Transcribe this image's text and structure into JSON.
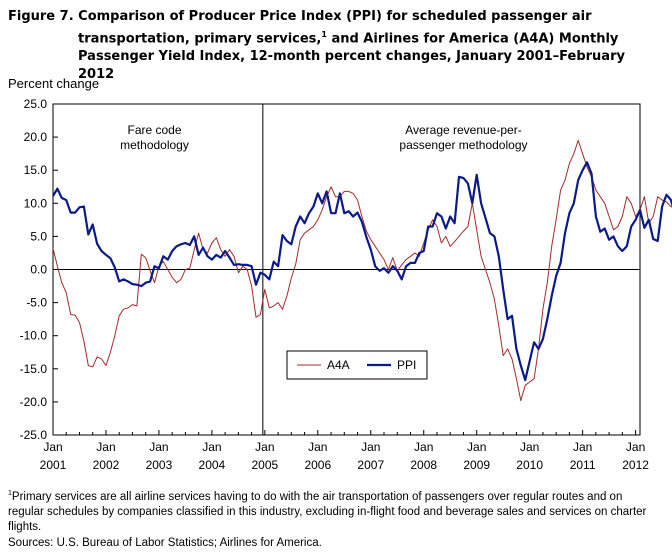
{
  "title": {
    "line1": "Figure 7.  Comparison of Producer Price Index (PPI) for scheduled passenger air",
    "line2a": "transportation, primary services,",
    "line2sup": "1",
    "line2b": " and Airlines for America (A4A) Monthly",
    "line3": "Passenger Yield Index, 12-month percent changes, January 2001–February 2012"
  },
  "footnote": {
    "marker": "1",
    "text": "Primary services are all airline services having to do with the air transportation  of passengers over regular routes and on regular schedules by companies classified in this industry, excluding in-flight food and beverage sales and services on charter flights."
  },
  "source": "Sources: U.S. Bureau of Labor Statistics; Airlines for America.",
  "chart_data": {
    "type": "line",
    "ylabel": "Percent change",
    "ylim": [
      -25,
      25
    ],
    "yticks": [
      25,
      20,
      15,
      10,
      5,
      0,
      -5,
      -10,
      -15,
      -20,
      -25
    ],
    "ytick_labels": [
      "25.0",
      "20.0",
      "15.0",
      "10.0",
      "5.0",
      "0.0",
      "-5.0",
      "-10.0",
      "-15.0",
      "-20.0",
      "-25.0"
    ],
    "x_start": "2001-01",
    "x_end": "2012-02",
    "xtick_labels": [
      {
        "month": "Jan",
        "year": "2001"
      },
      {
        "month": "Jan",
        "year": "2002"
      },
      {
        "month": "Jan",
        "year": "2003"
      },
      {
        "month": "Jan",
        "year": "2004"
      },
      {
        "month": "Jan",
        "year": "2005"
      },
      {
        "month": "Jan",
        "year": "2006"
      },
      {
        "month": "Jan",
        "year": "2007"
      },
      {
        "month": "Jan",
        "year": "2008"
      },
      {
        "month": "Jan",
        "year": "2009"
      },
      {
        "month": "Jan",
        "year": "2010"
      },
      {
        "month": "Jan",
        "year": "2011"
      },
      {
        "month": "Jan",
        "year": "2012"
      }
    ],
    "divider_date": "2005-01",
    "annotations": [
      {
        "lines": [
          "Fare code",
          "methodology"
        ],
        "at_date": "2002-12"
      },
      {
        "lines": [
          "Average revenue-per-",
          "passenger methodology"
        ],
        "at_date": "2008-10"
      }
    ],
    "legend": {
      "placement": "lower-left"
    },
    "series": [
      {
        "name": "A4A",
        "color": "#a52a2a",
        "values": [
          3.2,
          0.5,
          -2,
          -3.5,
          -6.8,
          -6.9,
          -8,
          -10.8,
          -14.5,
          -14.7,
          -13.2,
          -13.5,
          -14.5,
          -12.5,
          -10,
          -7,
          -6,
          -5.8,
          -5.3,
          -5.5,
          2.3,
          1.8,
          -0.2,
          -2,
          0.5,
          1.2,
          0,
          -1.2,
          -2,
          -1.5,
          0,
          0.2,
          3,
          5.5,
          3,
          2.5,
          4,
          4.8,
          3,
          2,
          3,
          2,
          -0.5,
          0.5,
          0,
          -2.5,
          -7.2,
          -6.8,
          -3,
          -5.8,
          -5.5,
          -5,
          -6,
          -4,
          -1.3,
          0.8,
          4.5,
          5.5,
          6,
          6.5,
          7.5,
          9,
          11,
          12.5,
          11,
          11,
          11.8,
          11.8,
          11.5,
          10.5,
          8,
          5.8,
          4.5,
          3.5,
          2.5,
          1.5,
          0,
          1.8,
          -0.2,
          0.7,
          1.5,
          2,
          2.5,
          2,
          4,
          6,
          7.5,
          6.5,
          4,
          5,
          3.5,
          4.2,
          5,
          5.8,
          6.5,
          10,
          6,
          2,
          0,
          -2,
          -4.5,
          -8.5,
          -13,
          -12,
          -13.5,
          -16.5,
          -19.8,
          -17.5,
          -17,
          -16.5,
          -12,
          -6,
          -2,
          3.5,
          7.5,
          12,
          13.5,
          16,
          17.5,
          19.5,
          17.5,
          15.5,
          14,
          12,
          11,
          10,
          8,
          6,
          6.5,
          8,
          11,
          10,
          8,
          9,
          11,
          7,
          8,
          11,
          10.5,
          10.2,
          9.5,
          9.2,
          6.5,
          6
        ]
      },
      {
        "name": "PPI",
        "color": "#0a1a8a",
        "values": [
          11.1,
          12.2,
          10.8,
          10.5,
          8.6,
          8.6,
          9.4,
          9.5,
          5.3,
          6.8,
          3.9,
          2.8,
          2.2,
          1.7,
          0.3,
          -1.8,
          -1.5,
          -1.8,
          -2.2,
          -2.3,
          -2.5,
          -2,
          -1.8,
          0.5,
          0.2,
          2,
          1.5,
          2.8,
          3.5,
          3.8,
          4,
          3.7,
          5,
          2.2,
          3.3,
          2,
          1.5,
          2.2,
          1.8,
          2.8,
          1.8,
          0.7,
          0.8,
          0.7,
          0.7,
          0.5,
          -2.3,
          -0.5,
          -0.8,
          -1.5,
          1.2,
          0.5,
          5.2,
          4.3,
          3.8,
          6.5,
          8,
          7,
          8.5,
          9.5,
          11.5,
          10,
          11.8,
          8.5,
          8.5,
          11.5,
          8.5,
          8.8,
          8,
          8.6,
          7.2,
          4.9,
          3,
          0.5,
          -0.2,
          0.2,
          -0.5,
          0.5,
          -0.2,
          -1.5,
          0.5,
          1,
          1,
          2.5,
          2.8,
          6.5,
          6.5,
          8.5,
          8,
          6.2,
          8,
          7,
          14,
          13.8,
          13,
          10,
          14.3,
          10,
          7.8,
          5.5,
          5,
          2,
          -3,
          -7.5,
          -7,
          -12,
          -14.5,
          -16.7,
          -13.8,
          -11,
          -12,
          -10.5,
          -7.5,
          -4,
          -1,
          1,
          5.5,
          8.5,
          10,
          13.5,
          15,
          16.2,
          14.5,
          8,
          5.7,
          6.2,
          4.5,
          5,
          3.5,
          2.8,
          3.5,
          6.5,
          7.5,
          9,
          6.3,
          7.5,
          4.6,
          4.3,
          9.5,
          11.3,
          10.5,
          8.3,
          8,
          6.5
        ]
      }
    ]
  }
}
